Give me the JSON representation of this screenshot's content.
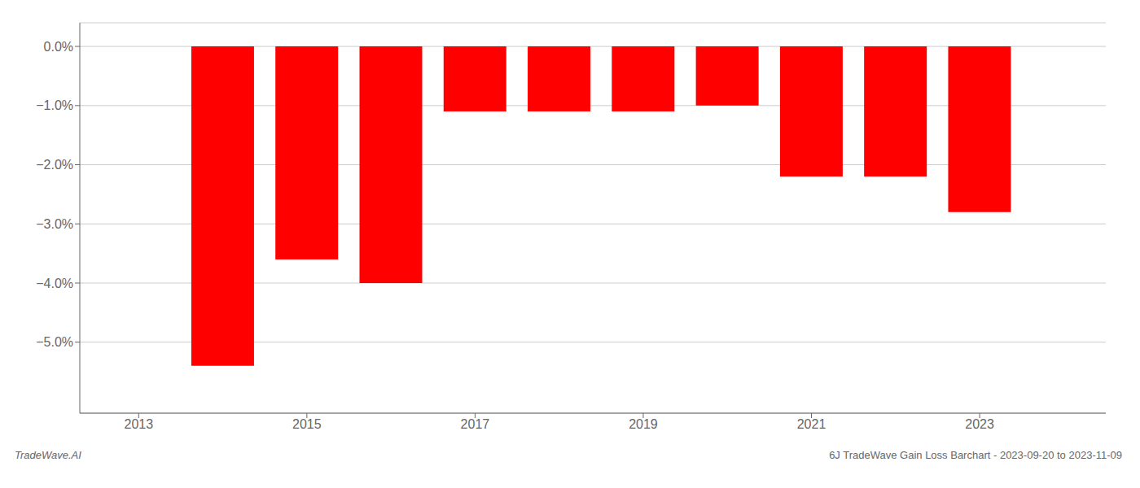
{
  "chart_data": {
    "type": "bar",
    "x": [
      2014,
      2015,
      2016,
      2017,
      2018,
      2019,
      2020,
      2021,
      2022,
      2023
    ],
    "values": [
      -0.054,
      -0.036,
      -0.04,
      -0.011,
      -0.011,
      -0.011,
      -0.01,
      -0.022,
      -0.022,
      -0.028
    ],
    "color": "#ff0000",
    "xlim": [
      2012.3,
      2024.5
    ],
    "ylim": [
      -0.062,
      0.004
    ],
    "xticks": [
      2013,
      2015,
      2017,
      2019,
      2021,
      2023
    ],
    "yticks": [
      {
        "value": 0.0,
        "label": "0.0%"
      },
      {
        "value": -0.01,
        "label": "−1.0%"
      },
      {
        "value": -0.02,
        "label": "−2.0%"
      },
      {
        "value": -0.03,
        "label": "−3.0%"
      },
      {
        "value": -0.04,
        "label": "−4.0%"
      },
      {
        "value": -0.05,
        "label": "−5.0%"
      }
    ],
    "grid": true,
    "annotations": [
      "TradeWave.AI",
      "6J TradeWave Gain Loss Barchart - 2023-09-20 to 2023-11-09"
    ]
  }
}
